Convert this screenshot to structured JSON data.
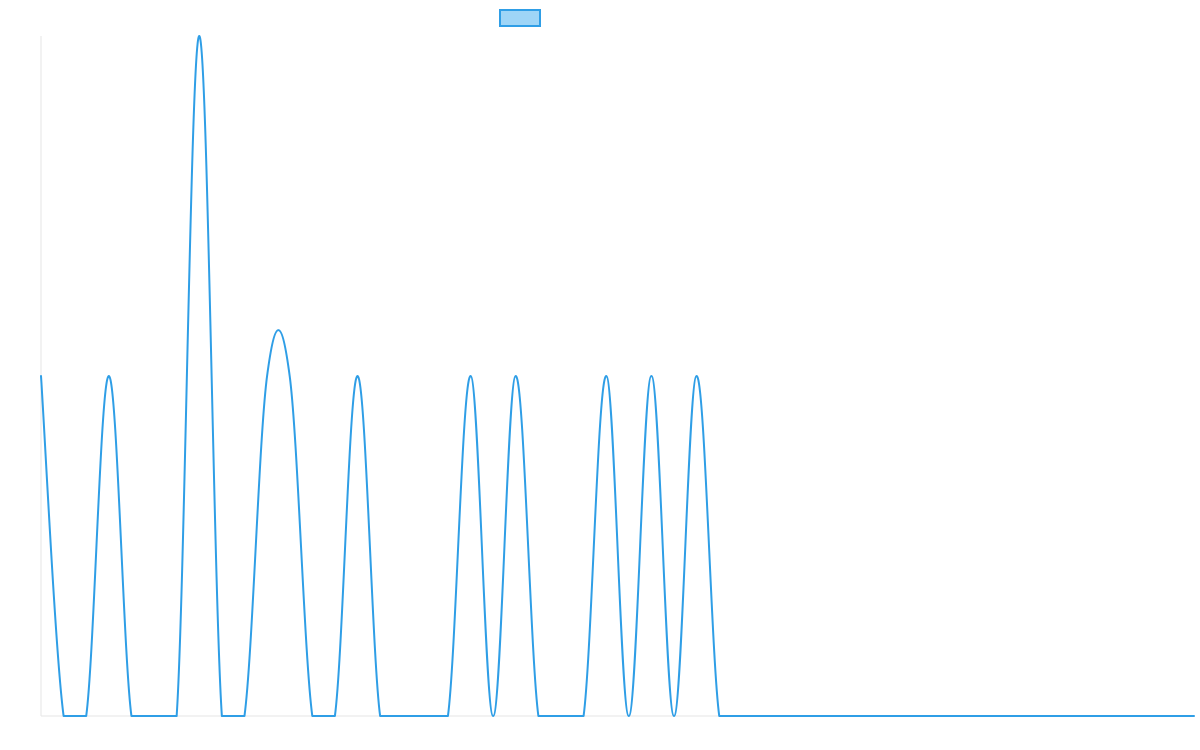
{
  "chart_data": {
    "type": "line",
    "title": "",
    "xlabel": "",
    "ylabel": "",
    "x": [
      0,
      1,
      2,
      3,
      4,
      5,
      6,
      7,
      8,
      9,
      10,
      11,
      12,
      13,
      14,
      15,
      16,
      17,
      18,
      19,
      20,
      21,
      22,
      23,
      24,
      25,
      26,
      27,
      28,
      29,
      30,
      31,
      32,
      33,
      34,
      35,
      36,
      37,
      38,
      39,
      40,
      41,
      42,
      43,
      44,
      45,
      46,
      47,
      48,
      49,
      50,
      51
    ],
    "ylim": [
      0,
      2
    ],
    "series": [
      {
        "name": "",
        "color": "#2f9ee6",
        "fill": "#9ed5f7",
        "values": [
          1,
          0,
          0,
          1,
          0,
          0,
          0,
          2,
          0,
          0,
          1,
          1,
          0,
          0,
          1,
          0,
          0,
          0,
          0,
          1,
          0,
          1,
          0,
          0,
          0,
          1,
          0,
          1,
          0,
          1,
          0,
          0,
          0,
          0,
          0,
          0,
          0,
          0,
          0,
          0,
          0,
          0,
          0,
          0,
          0,
          0,
          0,
          0,
          0,
          0,
          0,
          0
        ]
      }
    ],
    "legend": {
      "position": "top-center"
    },
    "grid": false
  }
}
